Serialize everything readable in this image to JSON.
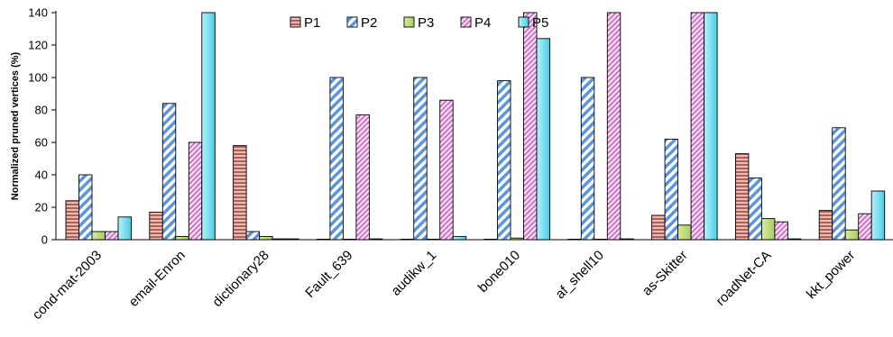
{
  "chart_data": {
    "type": "bar",
    "title": "",
    "xlabel": "",
    "ylabel": "Normalized pruned vertices (%)",
    "ylim": [
      0,
      140
    ],
    "yticks": [
      0,
      20,
      40,
      60,
      80,
      100,
      120,
      140
    ],
    "grid": false,
    "legend_position": "top",
    "categories": [
      "cond-mat-2003",
      "email-Enron",
      "dictionary28",
      "Fault_639",
      "audikw_1",
      "bone010",
      "af_shell10",
      "as-Skitter",
      "roadNet-CA",
      "kkt_power"
    ],
    "series": [
      {
        "name": "P1",
        "pattern": "horizontal-lines",
        "color": "#e6a29b",
        "values": [
          24,
          17,
          58,
          0.3,
          0.3,
          0.3,
          0.3,
          15,
          53,
          18
        ]
      },
      {
        "name": "P2",
        "pattern": "diagonal-stripes",
        "color": "#8fb7e8",
        "values": [
          40,
          84,
          5,
          100,
          100,
          98,
          100,
          62,
          38,
          69
        ]
      },
      {
        "name": "P3",
        "pattern": "solid",
        "color": "#c4e08a",
        "values": [
          5,
          2,
          2,
          0.3,
          0.3,
          1,
          0.3,
          9,
          13,
          6
        ]
      },
      {
        "name": "P4",
        "pattern": "diagonal-stripes-fine",
        "color": "#ee9ee6",
        "values": [
          5,
          60,
          0.5,
          77,
          86,
          140,
          140,
          140,
          11,
          16
        ]
      },
      {
        "name": "P5",
        "pattern": "solid-gradient",
        "color": "#7ae0f2",
        "values": [
          14,
          140,
          0.5,
          0.5,
          2,
          124,
          0.5,
          140,
          0.5,
          30
        ]
      }
    ]
  }
}
